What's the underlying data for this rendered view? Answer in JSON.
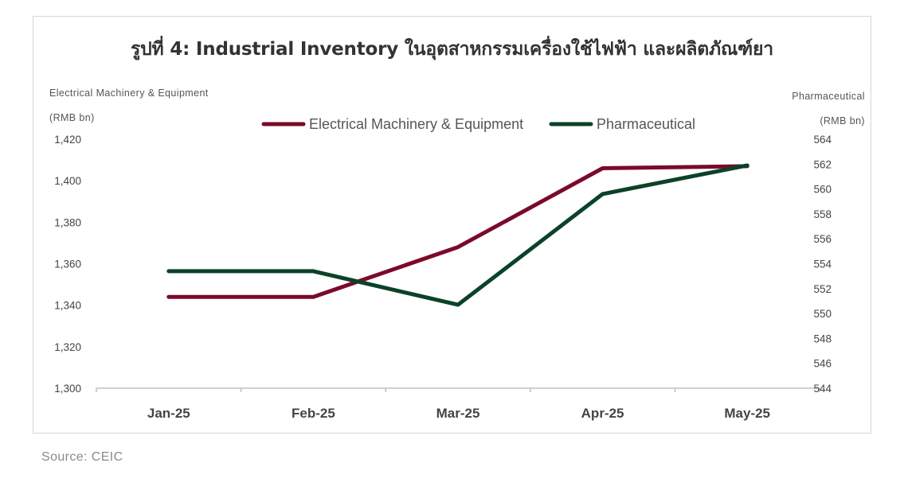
{
  "chart_data": {
    "type": "line",
    "title": "รูปที่ 4: Industrial Inventory ในอุตสาหกรรมเครื่องใช้ไฟฟ้า และผลิตภัณฑ์ยา",
    "categories": [
      "Jan-25",
      "Feb-25",
      "Mar-25",
      "Apr-25",
      "May-25"
    ],
    "left_axis": {
      "label_line1": "Electrical Machinery & Equipment",
      "label_line2": "(RMB bn)",
      "ylim": [
        1300,
        1420
      ],
      "ticks": [
        "1,300",
        "1,320",
        "1,340",
        "1,360",
        "1,380",
        "1,400",
        "1,420"
      ]
    },
    "right_axis": {
      "label_line1": "Pharmaceutical",
      "label_line2": "(RMB bn)",
      "ylim": [
        544,
        564
      ],
      "ticks": [
        "544",
        "546",
        "548",
        "550",
        "552",
        "554",
        "556",
        "558",
        "560",
        "562",
        "564"
      ]
    },
    "series": [
      {
        "name": "Electrical Machinery & Equipment",
        "axis": "left",
        "color": "#7b0a2a",
        "values": [
          1344,
          1344,
          1368,
          1406,
          1407
        ]
      },
      {
        "name": "Pharmaceutical",
        "axis": "right",
        "color": "#0b4228",
        "values": [
          553.4,
          553.4,
          550.7,
          559.6,
          561.9
        ]
      }
    ],
    "legend": "top-center",
    "grid": false
  },
  "source": "Source: CEIC"
}
